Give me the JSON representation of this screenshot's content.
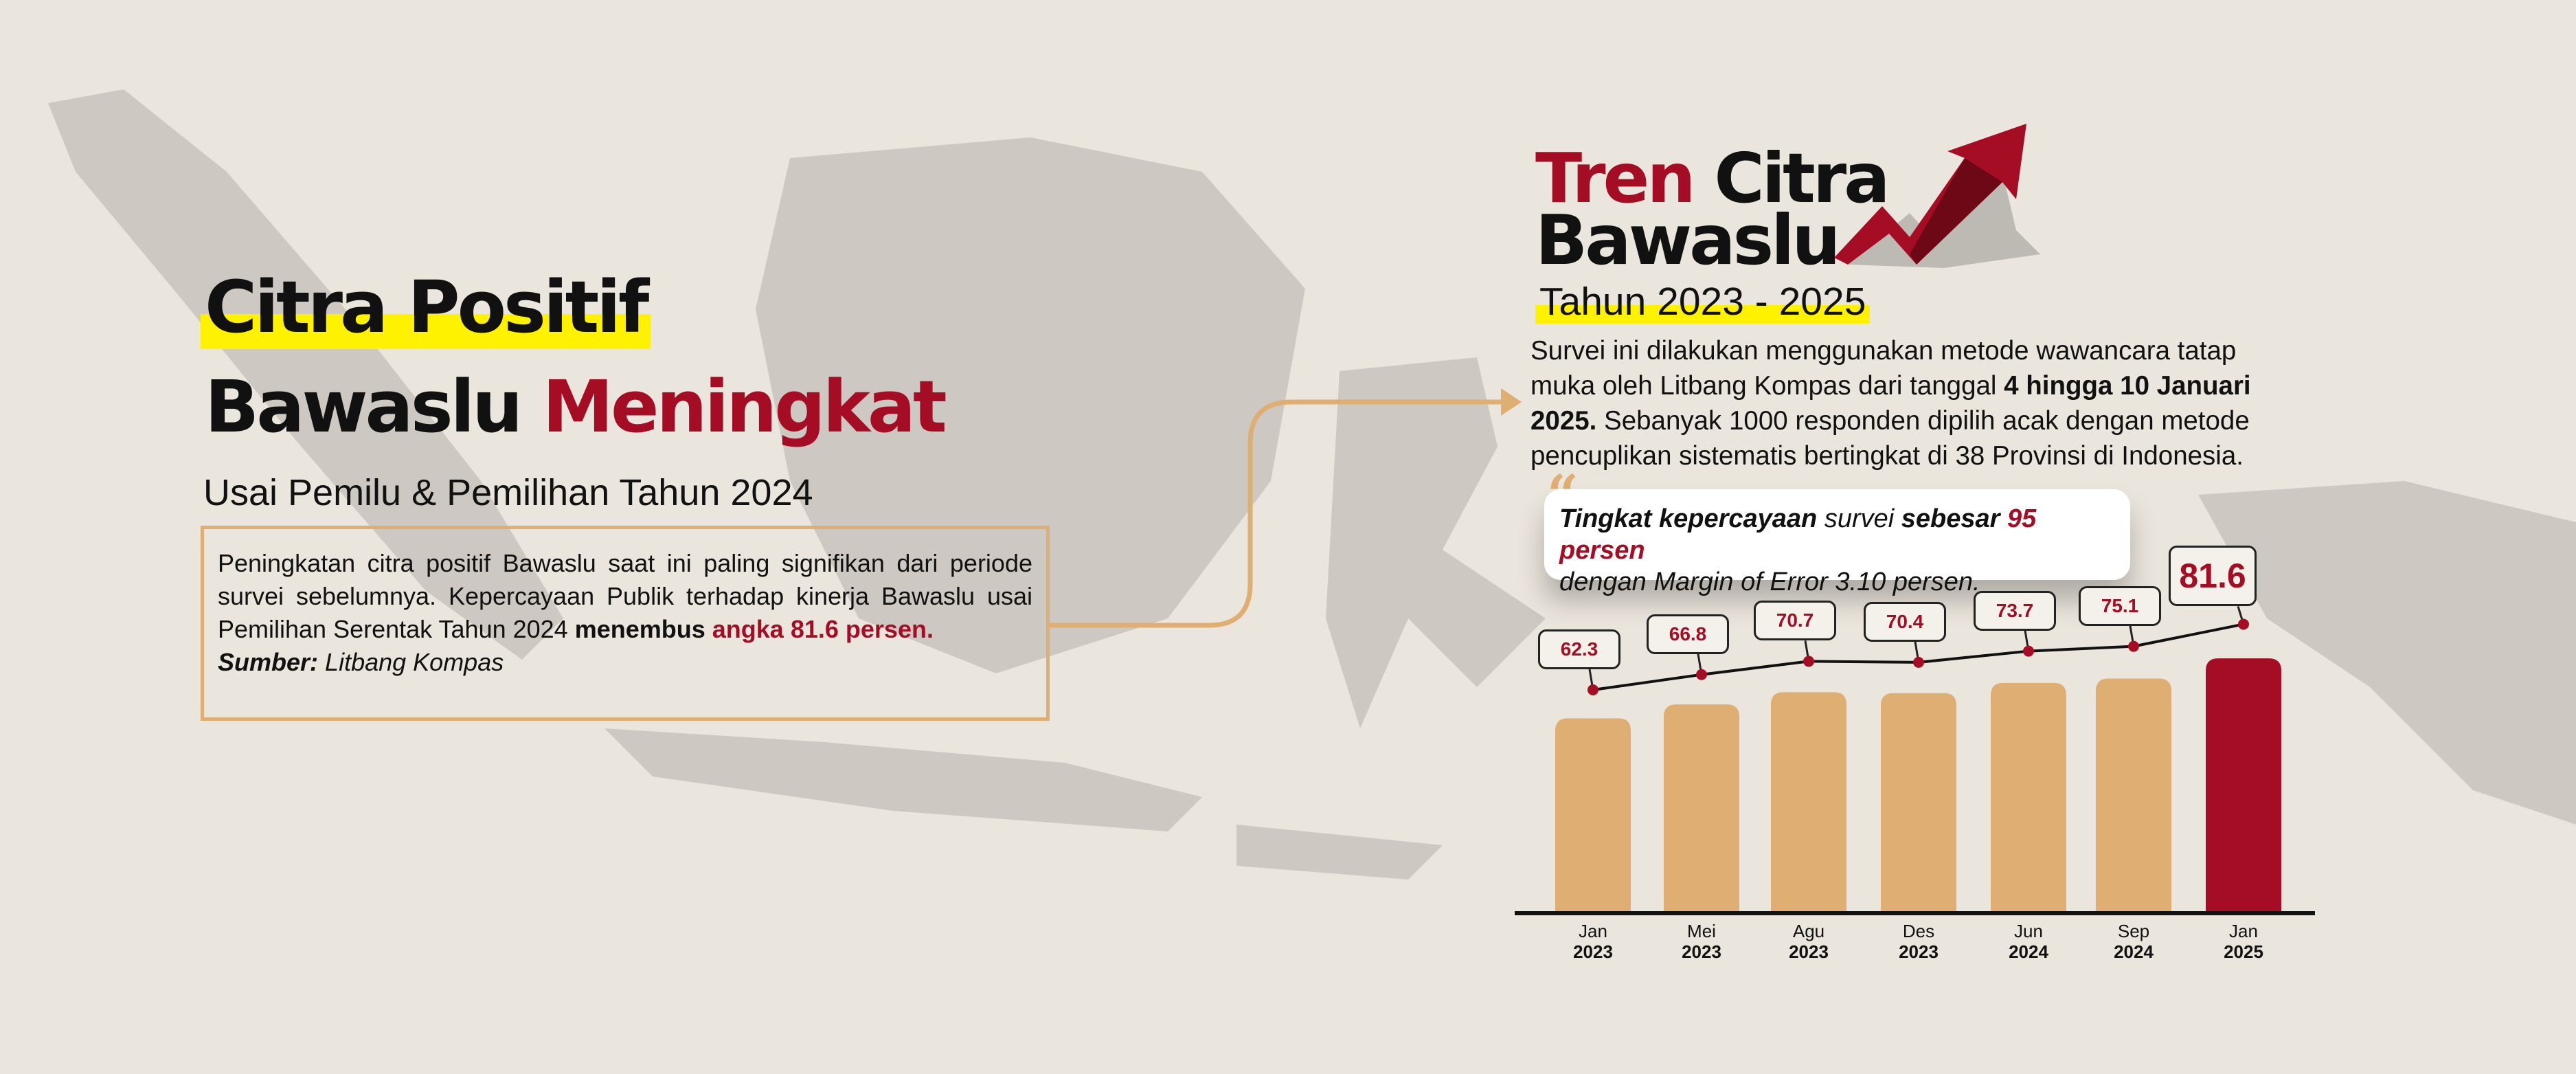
{
  "colors": {
    "accent_red": "#a50d25",
    "bar_tan": "#deae72",
    "highlight_yellow": "#fff200",
    "background": "#ebe6dd"
  },
  "left": {
    "title_line1": "Citra Positif",
    "title_line2_black": "Bawaslu",
    "title_line2_red": "Meningkat",
    "subtitle": "Usai Pemilu & Pemilihan Tahun 2024",
    "body_plain": "Peningkatan citra positif Bawaslu saat ini paling signifikan dari periode survei sebelumnya. Kepercayaan Publik terhadap kinerja Bawaslu usai Pemilihan Serentak Tahun 2024 ",
    "body_bold": "menembus",
    "body_red": "angka 81.6 persen.",
    "source_label": "Sumber:",
    "source_value": "Litbang Kompas"
  },
  "right": {
    "title_red": "Tren",
    "title_black1": "Citra",
    "title_black2": "Bawaslu",
    "period": "Tahun 2023 - 2025",
    "para_1": "Survei ini dilakukan menggunakan metode wawancara tatap muka oleh Litbang Kompas dari tanggal ",
    "para_bold_1": "4 hingga 10 Januari 2025.",
    "para_2": " Sebanyak 1000 responden dipilih acak dengan metode pencuplikan sistematis bertingkat di 38 Provinsi di Indonesia.",
    "quote_bold_1": "Tingkat kepercayaan",
    "quote_mid": " survei ",
    "quote_bold_2": "sebesar",
    "quote_red": " 95 persen",
    "quote_line2": "dengan Margin of Error 3.10 persen.",
    "icon": "trending-up-arrow-icon"
  },
  "chart_data": {
    "type": "bar",
    "categories": [
      [
        "Jan",
        "2023"
      ],
      [
        "Mei",
        "2023"
      ],
      [
        "Agu",
        "2023"
      ],
      [
        "Des",
        "2023"
      ],
      [
        "Jun",
        "2024"
      ],
      [
        "Sep",
        "2024"
      ],
      [
        "Jan",
        "2025"
      ]
    ],
    "values": [
      62.3,
      66.8,
      70.7,
      70.4,
      73.7,
      75.1,
      81.6
    ],
    "labels": [
      "62.3",
      "66.8",
      "70.7",
      "70.4",
      "73.7",
      "75.1",
      "81.6"
    ],
    "overlay": "line with point markers and callout labels",
    "highlight_last": true,
    "ylim": [
      0,
      90
    ],
    "grid": false,
    "legend": "none"
  }
}
